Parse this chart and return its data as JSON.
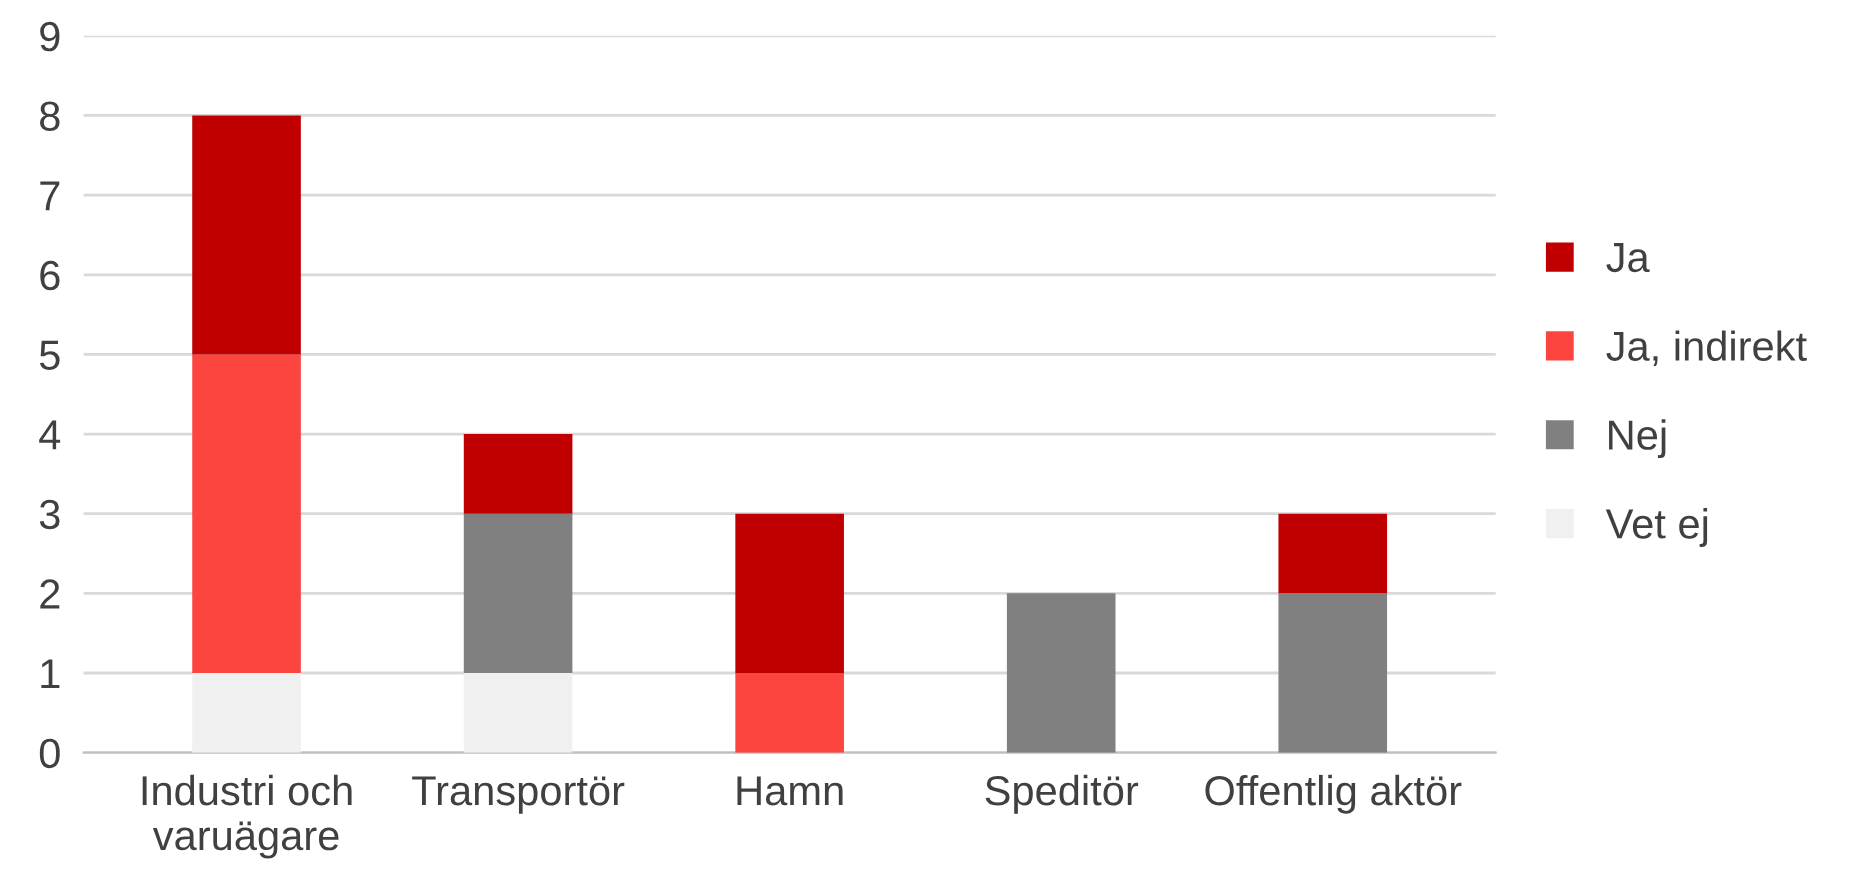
{
  "chart_data": {
    "type": "bar",
    "stacked": true,
    "categories": [
      "Industri och\nvaruägare",
      "Transportör",
      "Hamn",
      "Speditör",
      "Offentlig aktör"
    ],
    "series": [
      {
        "name": "Vet ej",
        "color": "#f0f0f0",
        "values": [
          1,
          1,
          0,
          0,
          0
        ]
      },
      {
        "name": "Nej",
        "color": "#808080",
        "values": [
          0,
          2,
          0,
          2,
          2
        ]
      },
      {
        "name": "Ja, indirekt",
        "color": "#fd4540",
        "values": [
          4,
          0,
          1,
          0,
          0
        ]
      },
      {
        "name": "Ja",
        "color": "#c00000",
        "values": [
          3,
          1,
          2,
          0,
          1
        ]
      }
    ],
    "ylim": [
      0,
      9
    ],
    "yticks": [
      0,
      1,
      2,
      3,
      4,
      5,
      6,
      7,
      8,
      9
    ],
    "grid": "y",
    "legend": "right"
  }
}
